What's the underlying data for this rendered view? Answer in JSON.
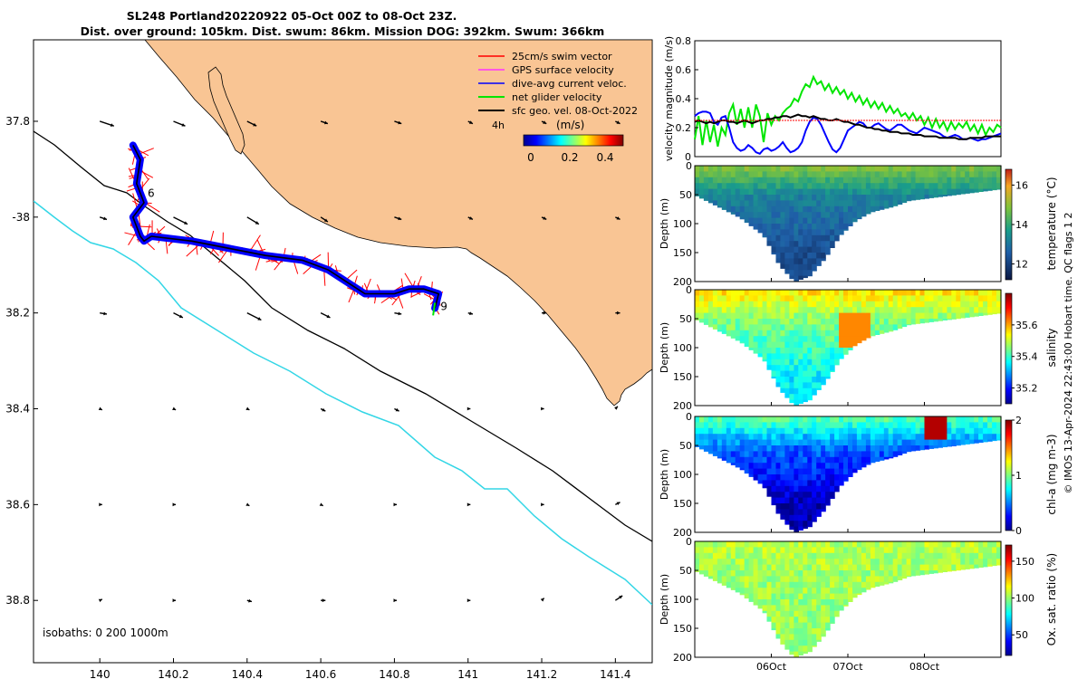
{
  "title_line1": "SL248 Portland20220922 05-Oct 00Z to 08-Oct 23Z.",
  "title_line2": "Dist. over ground: 105km. Dist. swum: 86km. Mission DOG: 392km. Swum: 366km",
  "side_note": "© IMOS 13-Apr-2024 22:43:00 Hobart time. QC flags 1 2",
  "colors": {
    "land": "#f9c594",
    "coast": "#000000",
    "isobath_200": "#000000",
    "isobath_1000": "#33d6e6",
    "swim": "#ff0000",
    "gps": "#ff33ff",
    "dive_avg": "#0000ff",
    "net": "#00e600",
    "geo": "#000000"
  },
  "chart_data": [
    {
      "type": "map",
      "xticks": [
        140,
        140.2,
        140.4,
        140.6,
        140.8,
        141,
        141.2,
        141.4
      ],
      "xtick_labels": [
        "140",
        "140.2",
        "140.4",
        "140.6",
        "140.8",
        "141",
        "141.2",
        "141.4"
      ],
      "yticks": [
        -37.8,
        -38,
        -38.2,
        -38.4,
        -38.6,
        -38.8
      ],
      "ytick_labels": [
        "37.8",
        "-38",
        "38.2",
        "38.4",
        "38.6",
        "38.8"
      ],
      "xlim": [
        139.82,
        141.5
      ],
      "ylim": [
        -38.93,
        -37.63
      ],
      "legend": [
        "25cm/s swim vector",
        "GPS surface velocity",
        "dive-avg current veloc.",
        "net glider velocity",
        "sfc geo. vel. 08-Oct-2022"
      ],
      "legend_placement": "top-right",
      "note_4h": "4h",
      "colorbar_label": "(m/s)",
      "colorbar_ticks": [
        "0",
        "0.2",
        "0.4"
      ],
      "colorbar_range": [
        0,
        0.5
      ],
      "isobath_note": "isobaths: 0   200  1000m",
      "day_labels": [
        {
          "text": "6",
          "lon": 140.12,
          "lat": -37.95
        },
        {
          "text": "9",
          "lon": 140.92,
          "lat": -38.19
        }
      ],
      "track": [
        [
          140.09,
          -37.85
        ],
        [
          140.11,
          -37.88
        ],
        [
          140.1,
          -37.93
        ],
        [
          140.12,
          -37.97
        ],
        [
          140.09,
          -38.0
        ],
        [
          140.11,
          -38.04
        ],
        [
          140.12,
          -38.05
        ],
        [
          140.14,
          -38.04
        ],
        [
          140.25,
          -38.05
        ],
        [
          140.45,
          -38.08
        ],
        [
          140.55,
          -38.09
        ],
        [
          140.62,
          -38.11
        ],
        [
          140.72,
          -38.16
        ],
        [
          140.8,
          -38.16
        ],
        [
          140.84,
          -38.15
        ],
        [
          140.88,
          -38.15
        ],
        [
          140.92,
          -38.16
        ],
        [
          140.91,
          -38.19
        ]
      ],
      "geo_vectors_u": [
        [
          0.06,
          0.05,
          0.04,
          0.03,
          0.03,
          0.02,
          0.02,
          0.02
        ],
        [
          0.03,
          0.06,
          0.05,
          0.03,
          0.03,
          0.02,
          0.02,
          0.02
        ],
        [
          0.03,
          0.04,
          0.06,
          0.04,
          0.03,
          0.02,
          0.02,
          0.02
        ],
        [
          0.01,
          0.01,
          0.01,
          0.02,
          0.02,
          0.01,
          0.01,
          0.01
        ],
        [
          0.01,
          0.01,
          0.01,
          0.01,
          0.01,
          0.01,
          0.01,
          0.02
        ],
        [
          0.01,
          0.01,
          0.02,
          0.02,
          0.01,
          0.01,
          0.01,
          0.03
        ]
      ],
      "geo_vectors_v": [
        [
          -0.02,
          -0.02,
          -0.02,
          -0.01,
          -0.01,
          -0.01,
          -0.01,
          -0.01
        ],
        [
          -0.01,
          -0.03,
          -0.03,
          -0.02,
          -0.01,
          -0.01,
          -0.01,
          -0.01
        ],
        [
          -0.005,
          -0.02,
          -0.03,
          -0.02,
          -0.005,
          -0.005,
          0,
          0
        ],
        [
          -0.005,
          -0.005,
          -0.005,
          -0.01,
          -0.01,
          0,
          0,
          0.01
        ],
        [
          0,
          0,
          -0.005,
          -0.005,
          0,
          0,
          0,
          0.01
        ],
        [
          0.005,
          0,
          -0.005,
          0,
          0,
          0,
          0.01,
          0.02
        ]
      ]
    },
    {
      "type": "line",
      "ylabel": "velocity magnitude (m/s)",
      "ylim": [
        0,
        0.8
      ],
      "yticks": [
        0,
        0.2,
        0.4,
        0.6,
        0.8
      ],
      "ytick_labels": [
        "0",
        "0.2",
        "0.4",
        "0.6",
        "0.8"
      ],
      "x": [
        0,
        0.05,
        0.1,
        0.15,
        0.2,
        0.25,
        0.3,
        0.35,
        0.4,
        0.45,
        0.5,
        0.55,
        0.6,
        0.65,
        0.7,
        0.75,
        0.8,
        0.85,
        0.9,
        0.95,
        1.0,
        1.05,
        1.1,
        1.15,
        1.2,
        1.25,
        1.3,
        1.35,
        1.4,
        1.45,
        1.5,
        1.55,
        1.6,
        1.65,
        1.7,
        1.75,
        1.8,
        1.85,
        1.9,
        1.95,
        2.0,
        2.05,
        2.1,
        2.15,
        2.2,
        2.25,
        2.3,
        2.35,
        2.4,
        2.45,
        2.5,
        2.55,
        2.6,
        2.65,
        2.7,
        2.75,
        2.8,
        2.85,
        2.9,
        2.95,
        3.0,
        3.05,
        3.1,
        3.15,
        3.2,
        3.25,
        3.3,
        3.35,
        3.4,
        3.45,
        3.5,
        3.55,
        3.6,
        3.65,
        3.7,
        3.75,
        3.8,
        3.85,
        3.9,
        3.95,
        4.0
      ],
      "series": [
        {
          "color": "#00e600",
          "values": [
            0.12,
            0.28,
            0.08,
            0.25,
            0.1,
            0.22,
            0.07,
            0.2,
            0.15,
            0.3,
            0.36,
            0.22,
            0.33,
            0.2,
            0.34,
            0.2,
            0.36,
            0.28,
            0.1,
            0.3,
            0.22,
            0.28,
            0.25,
            0.3,
            0.33,
            0.35,
            0.4,
            0.38,
            0.45,
            0.5,
            0.48,
            0.55,
            0.5,
            0.52,
            0.46,
            0.5,
            0.44,
            0.48,
            0.43,
            0.46,
            0.4,
            0.44,
            0.38,
            0.42,
            0.36,
            0.4,
            0.34,
            0.38,
            0.33,
            0.37,
            0.31,
            0.35,
            0.3,
            0.33,
            0.28,
            0.3,
            0.26,
            0.3,
            0.25,
            0.28,
            0.22,
            0.27,
            0.2,
            0.26,
            0.2,
            0.24,
            0.18,
            0.24,
            0.19,
            0.23,
            0.2,
            0.24,
            0.18,
            0.22,
            0.16,
            0.22,
            0.15,
            0.2,
            0.17,
            0.22,
            0.2
          ]
        },
        {
          "color": "#0000ff",
          "values": [
            0.28,
            0.3,
            0.31,
            0.31,
            0.3,
            0.24,
            0.22,
            0.27,
            0.28,
            0.2,
            0.1,
            0.06,
            0.04,
            0.05,
            0.08,
            0.06,
            0.03,
            0.02,
            0.05,
            0.06,
            0.04,
            0.05,
            0.07,
            0.1,
            0.06,
            0.03,
            0.04,
            0.06,
            0.1,
            0.18,
            0.24,
            0.27,
            0.26,
            0.22,
            0.16,
            0.1,
            0.05,
            0.03,
            0.06,
            0.12,
            0.18,
            0.2,
            0.22,
            0.24,
            0.23,
            0.2,
            0.2,
            0.22,
            0.23,
            0.21,
            0.19,
            0.18,
            0.2,
            0.22,
            0.22,
            0.2,
            0.18,
            0.17,
            0.16,
            0.18,
            0.2,
            0.19,
            0.18,
            0.17,
            0.16,
            0.14,
            0.13,
            0.14,
            0.15,
            0.14,
            0.12,
            0.12,
            0.13,
            0.12,
            0.11,
            0.12,
            0.12,
            0.13,
            0.14,
            0.15,
            0.16
          ]
        },
        {
          "color": "#000000",
          "values": [
            0.24,
            0.25,
            0.24,
            0.23,
            0.24,
            0.23,
            0.24,
            0.25,
            0.25,
            0.24,
            0.24,
            0.23,
            0.24,
            0.25,
            0.24,
            0.23,
            0.24,
            0.25,
            0.25,
            0.26,
            0.26,
            0.27,
            0.27,
            0.28,
            0.28,
            0.27,
            0.28,
            0.29,
            0.28,
            0.28,
            0.27,
            0.28,
            0.27,
            0.26,
            0.26,
            0.25,
            0.25,
            0.26,
            0.25,
            0.24,
            0.24,
            0.23,
            0.22,
            0.22,
            0.21,
            0.2,
            0.2,
            0.19,
            0.19,
            0.18,
            0.18,
            0.17,
            0.17,
            0.17,
            0.16,
            0.16,
            0.16,
            0.15,
            0.15,
            0.15,
            0.14,
            0.14,
            0.14,
            0.14,
            0.13,
            0.13,
            0.13,
            0.13,
            0.13,
            0.12,
            0.12,
            0.12,
            0.13,
            0.13,
            0.13,
            0.13,
            0.14,
            0.14,
            0.14,
            0.14,
            0.14
          ]
        },
        {
          "color": "#ff0000",
          "values": [
            0.25,
            0.25,
            0.25,
            0.25,
            0.25,
            0.25,
            0.25,
            0.25,
            0.25,
            0.25,
            0.25,
            0.25,
            0.25,
            0.25,
            0.25,
            0.25,
            0.25,
            0.25,
            0.25,
            0.25,
            0.25,
            0.25,
            0.25,
            0.25,
            0.25,
            0.25,
            0.25,
            0.25,
            0.25,
            0.25,
            0.25,
            0.25,
            0.25,
            0.25,
            0.25,
            0.25,
            0.25,
            0.25,
            0.25,
            0.25,
            0.25,
            0.25,
            0.25,
            0.25,
            0.25,
            0.25,
            0.25,
            0.25,
            0.25,
            0.25,
            0.25,
            0.25,
            0.25,
            0.25,
            0.25,
            0.25,
            0.25,
            0.25,
            0.25,
            0.25,
            0.25,
            0.25,
            0.25,
            0.25,
            0.25,
            0.25,
            0.25,
            0.25,
            0.25,
            0.25,
            0.25,
            0.25,
            0.25,
            0.25,
            0.25,
            0.25,
            0.25,
            0.25,
            0.25,
            0.25,
            0.25
          ]
        }
      ]
    },
    {
      "type": "heatmap",
      "ylabel": "Depth (m)",
      "yticks": [
        0,
        50,
        100,
        150,
        200
      ],
      "ylim": [
        0,
        200
      ],
      "xticks": [
        1,
        2,
        3
      ],
      "xtick_labels": [
        "06Oct",
        "07Oct",
        "08Oct"
      ],
      "xlim": [
        0,
        4
      ],
      "profile_depth": [
        [
          0,
          50
        ],
        [
          0.3,
          70
        ],
        [
          0.6,
          90
        ],
        [
          0.9,
          120
        ],
        [
          1.1,
          170
        ],
        [
          1.3,
          200
        ],
        [
          1.5,
          190
        ],
        [
          1.7,
          160
        ],
        [
          1.9,
          120
        ],
        [
          2.1,
          95
        ],
        [
          2.3,
          80
        ],
        [
          2.6,
          70
        ],
        [
          2.8,
          60
        ],
        [
          3.1,
          55
        ],
        [
          3.4,
          50
        ],
        [
          3.7,
          45
        ],
        [
          4.0,
          40
        ]
      ],
      "panels": [
        {
          "name": "temperature",
          "cblabel": "temperature (°C)",
          "cbticks": [
            12,
            14,
            16
          ],
          "cbrange": [
            11.2,
            16.8
          ],
          "surface": 14.8,
          "deep": 13.2,
          "bottom": 12.2
        },
        {
          "name": "salinity",
          "cblabel": "salinity",
          "cbticks": [
            35.2,
            35.4,
            35.6
          ],
          "cbrange": [
            35.1,
            35.8
          ],
          "surface": 35.55,
          "deep": 35.45,
          "bottom": 35.35
        },
        {
          "name": "chl-a",
          "cblabel": "chl-a (mg m-3)",
          "cbticks": [
            0,
            1,
            2
          ],
          "cbrange": [
            0,
            2
          ],
          "surface": 0.9,
          "deep": 0.45,
          "bottom": 0.1
        },
        {
          "name": "oxygen",
          "cblabel": "Ox. sat. ratio (%)",
          "cbticks": [
            50,
            100,
            150
          ],
          "cbrange": [
            22,
            172
          ],
          "surface": 105,
          "deep": 102,
          "bottom": 100
        }
      ]
    }
  ]
}
